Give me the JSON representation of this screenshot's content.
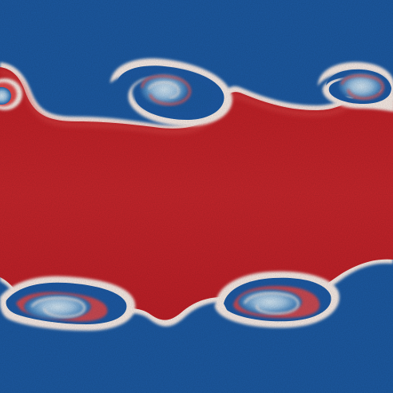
{
  "image": {
    "subject": "kelvin-helmholtz-instability-field",
    "colors": {
      "background_blue": "#1c5aa3",
      "deep_blue": "#174f95",
      "band_red": "#c42229",
      "edge_red": "#e04a4a",
      "interface_white": "#fbeee8",
      "core_light_blue": "#bcd9ef",
      "core_mid_blue": "#6aa6d3"
    },
    "vortex_count_top": 2,
    "vortex_count_bottom": 2
  }
}
